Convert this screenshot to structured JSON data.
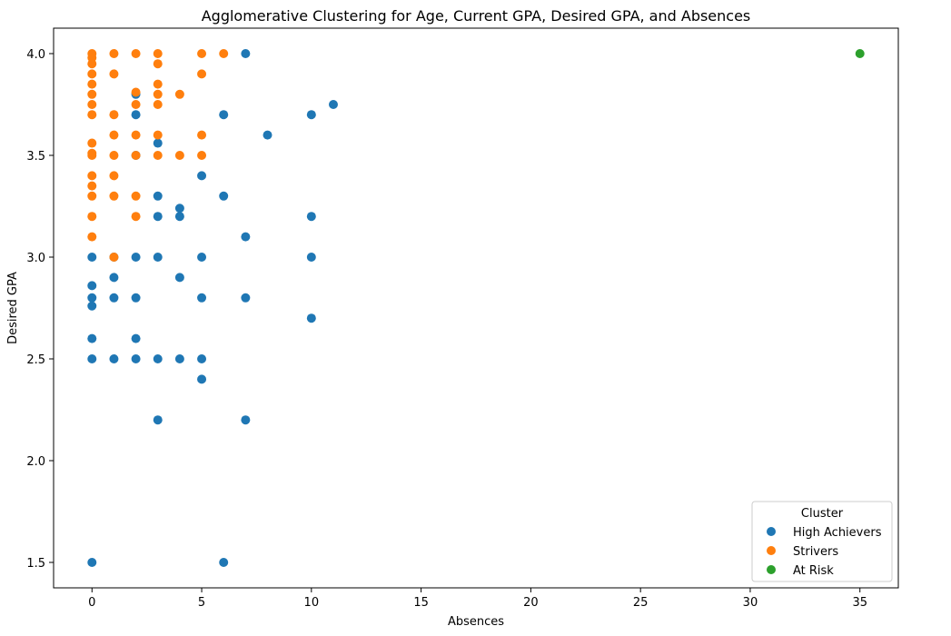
{
  "chart_data": {
    "type": "scatter",
    "title": "Agglomerative Clustering for Age, Current GPA, Desired GPA, and Absences",
    "xlabel": "Absences",
    "ylabel": "Desired GPA",
    "xlim": [
      -1.75,
      36.75
    ],
    "ylim": [
      1.375,
      4.125
    ],
    "xticks": [
      0,
      5,
      10,
      15,
      20,
      25,
      30,
      35
    ],
    "yticks": [
      1.5,
      2.0,
      2.5,
      3.0,
      3.5,
      4.0
    ],
    "ytick_labels": [
      "1.5",
      "2.0",
      "2.5",
      "3.0",
      "3.5",
      "4.0"
    ],
    "grid": false,
    "legend": {
      "title": "Cluster",
      "placement": "bottom-right"
    },
    "series": [
      {
        "name": "High Achievers",
        "color": "#1f77b4",
        "points": [
          [
            0,
            3.0
          ],
          [
            0,
            2.86
          ],
          [
            0,
            2.8
          ],
          [
            0,
            2.76
          ],
          [
            0,
            2.6
          ],
          [
            0,
            2.5
          ],
          [
            0,
            1.5
          ],
          [
            1,
            3.0
          ],
          [
            1,
            2.9
          ],
          [
            1,
            2.8
          ],
          [
            1,
            2.5
          ],
          [
            2,
            3.8
          ],
          [
            2,
            3.7
          ],
          [
            2,
            3.5
          ],
          [
            2,
            3.0
          ],
          [
            2,
            2.8
          ],
          [
            2,
            2.6
          ],
          [
            2,
            2.5
          ],
          [
            3,
            3.56
          ],
          [
            3,
            3.3
          ],
          [
            3,
            3.2
          ],
          [
            3,
            3.0
          ],
          [
            3,
            2.5
          ],
          [
            3,
            2.2
          ],
          [
            4,
            3.24
          ],
          [
            4,
            3.2
          ],
          [
            4,
            2.9
          ],
          [
            4,
            2.5
          ],
          [
            5,
            3.4
          ],
          [
            5,
            3.0
          ],
          [
            5,
            2.8
          ],
          [
            5,
            2.5
          ],
          [
            5,
            2.4
          ],
          [
            6,
            3.7
          ],
          [
            6,
            3.3
          ],
          [
            6,
            1.5
          ],
          [
            7,
            4.0
          ],
          [
            7,
            3.1
          ],
          [
            7,
            2.8
          ],
          [
            7,
            2.2
          ],
          [
            8,
            3.6
          ],
          [
            10,
            3.7
          ],
          [
            10,
            3.2
          ],
          [
            10,
            3.0
          ],
          [
            10,
            2.7
          ],
          [
            11,
            3.75
          ]
        ]
      },
      {
        "name": "Strivers",
        "color": "#ff7f0e",
        "points": [
          [
            0,
            4.0
          ],
          [
            0,
            3.98
          ],
          [
            0,
            3.95
          ],
          [
            0,
            3.9
          ],
          [
            0,
            3.85
          ],
          [
            0,
            3.8
          ],
          [
            0,
            3.75
          ],
          [
            0,
            3.7
          ],
          [
            0,
            3.56
          ],
          [
            0,
            3.51
          ],
          [
            0,
            3.5
          ],
          [
            0,
            3.4
          ],
          [
            0,
            3.35
          ],
          [
            0,
            3.3
          ],
          [
            0,
            3.2
          ],
          [
            0,
            3.1
          ],
          [
            1,
            4.0
          ],
          [
            1,
            3.9
          ],
          [
            1,
            3.7
          ],
          [
            1,
            3.6
          ],
          [
            1,
            3.5
          ],
          [
            1,
            3.4
          ],
          [
            1,
            3.3
          ],
          [
            1,
            3.0
          ],
          [
            2,
            4.0
          ],
          [
            2,
            3.81
          ],
          [
            2,
            3.75
          ],
          [
            2,
            3.6
          ],
          [
            2,
            3.5
          ],
          [
            2,
            3.3
          ],
          [
            2,
            3.2
          ],
          [
            3,
            4.0
          ],
          [
            3,
            3.95
          ],
          [
            3,
            3.85
          ],
          [
            3,
            3.8
          ],
          [
            3,
            3.75
          ],
          [
            3,
            3.6
          ],
          [
            3,
            3.5
          ],
          [
            4,
            3.8
          ],
          [
            4,
            3.5
          ],
          [
            5,
            4.0
          ],
          [
            5,
            3.9
          ],
          [
            5,
            3.6
          ],
          [
            5,
            3.5
          ],
          [
            6,
            4.0
          ]
        ]
      },
      {
        "name": "At Risk",
        "color": "#2ca02c",
        "points": [
          [
            35,
            4.0
          ]
        ]
      }
    ]
  }
}
